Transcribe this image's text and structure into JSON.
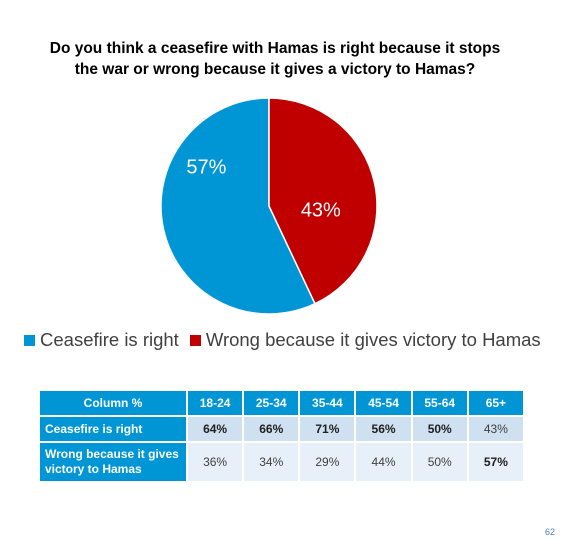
{
  "title_lines": [
    "Do you think a ceasefire with Hamas is right because it stops",
    "the war or wrong because it gives a victory to Hamas?"
  ],
  "colors": {
    "ceasefire": "#0096d6",
    "wrong": "#c00000",
    "header": "#0096d6"
  },
  "chart_data": {
    "type": "pie",
    "title": "Do you think a ceasefire with Hamas is right because it stops the war or wrong because it gives a victory to Hamas?",
    "slices": [
      {
        "label": "Ceasefire is right",
        "value": 57,
        "display": "57%",
        "color": "#0096d6"
      },
      {
        "label": "Wrong because it gives victory to Hamas",
        "value": 43,
        "display": "43%",
        "color": "#c00000"
      }
    ],
    "legend_position": "bottom-left"
  },
  "legend": [
    {
      "label": "Ceasefire is right",
      "color": "#0096d6"
    },
    {
      "label": "Wrong because it gives victory to Hamas",
      "color": "#c00000"
    }
  ],
  "table": {
    "corner": "Column %",
    "columns": [
      "18-24",
      "25-34",
      "35-44",
      "45-54",
      "55-64",
      "65+"
    ],
    "rows": [
      {
        "label": "Ceasefire is right",
        "values": [
          "64%",
          "66%",
          "71%",
          "56%",
          "50%",
          "43%"
        ],
        "bold": [
          true,
          true,
          true,
          true,
          true,
          false
        ]
      },
      {
        "label": "Wrong because it gives victory to Hamas",
        "values": [
          "36%",
          "34%",
          "29%",
          "44%",
          "50%",
          "57%"
        ],
        "bold": [
          false,
          false,
          false,
          false,
          false,
          true
        ]
      }
    ]
  },
  "page_number": "62"
}
